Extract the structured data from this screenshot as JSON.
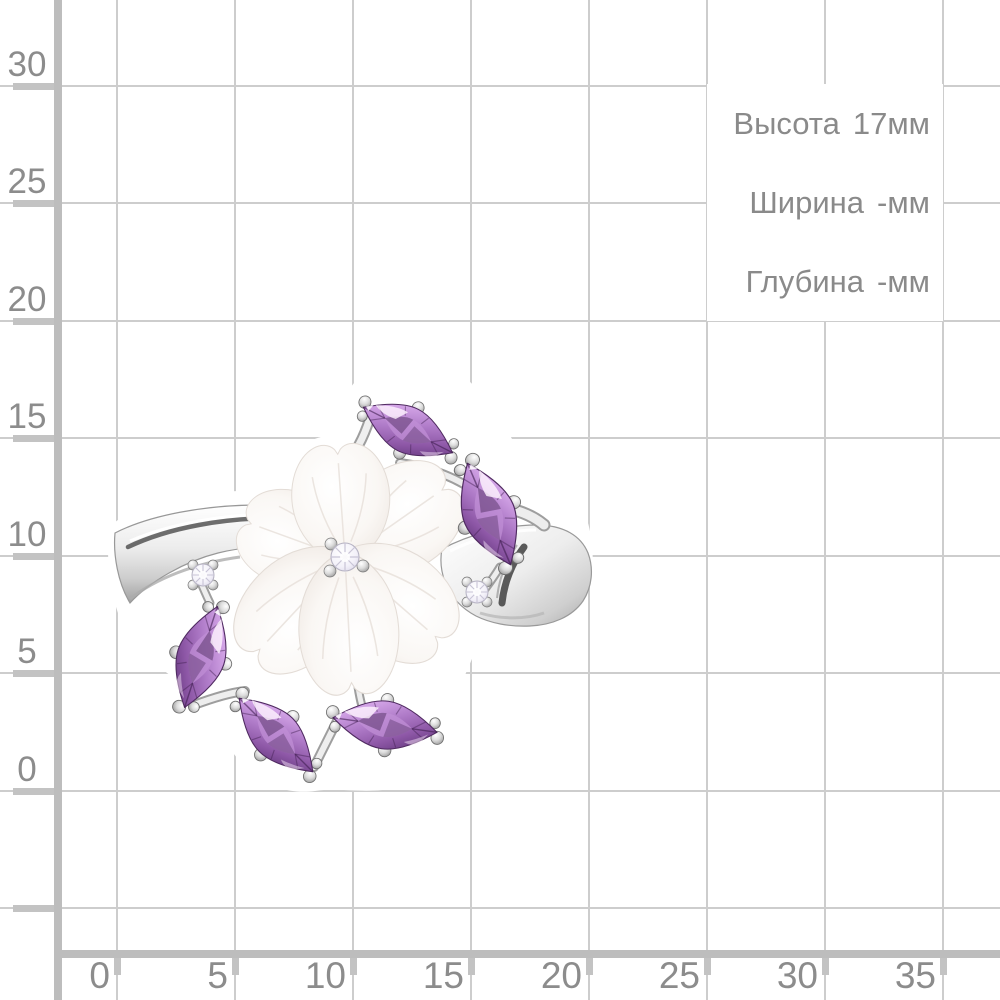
{
  "dimensions_panel": {
    "rows": [
      {
        "name": "height",
        "label": "Высота",
        "value": "17мм"
      },
      {
        "name": "width",
        "label": "Ширина",
        "value": "-мм"
      },
      {
        "name": "depth",
        "label": "Глубина",
        "value": "-мм"
      }
    ],
    "text_color": "#8a8a8a"
  },
  "ruler": {
    "x_axis": {
      "labels": [
        "0",
        "5",
        "10",
        "15",
        "20",
        "25",
        "30",
        "35"
      ]
    },
    "y_axis": {
      "labels": [
        "30",
        "25",
        "20",
        "15",
        "10",
        "5",
        "0"
      ]
    },
    "label_color": "#8c8c8c",
    "grid_line_color": "#cdcdcd",
    "axis_bar_color": "#bdbdbd"
  },
  "product_photo": {
    "alt": "silver ring with carved mother-of-pearl flower, five marquise amethysts and three round cubic zirconia",
    "colors": {
      "amethyst_light": "#d2a3e6",
      "amethyst_dark": "#6b3d84",
      "metal_silver": "#d9d9d9",
      "pearl_white": "#f8f5f1"
    }
  }
}
